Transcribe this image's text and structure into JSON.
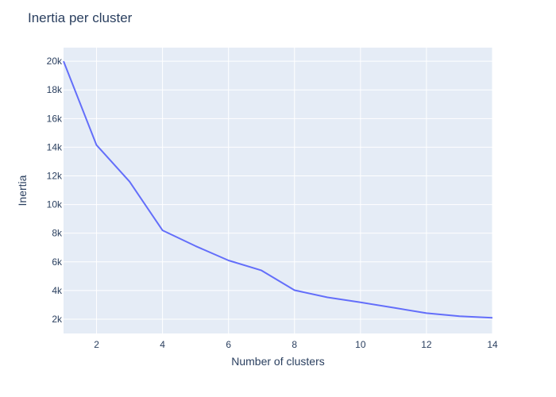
{
  "chart_data": {
    "type": "line",
    "title": "Inertia per cluster",
    "xlabel": "Number of clusters",
    "ylabel": "Inertia",
    "x": [
      1,
      2,
      3,
      4,
      5,
      6,
      7,
      8,
      9,
      10,
      11,
      12,
      13,
      14
    ],
    "series": [
      {
        "values": [
          20000,
          14150,
          11600,
          8200,
          7100,
          6100,
          5400,
          4020,
          3520,
          3170,
          2800,
          2420,
          2200,
          2100
        ]
      }
    ],
    "xlim": [
      1,
      14
    ],
    "ylim": [
      1000,
      20950
    ],
    "xticks": [
      2,
      4,
      6,
      8,
      10,
      12,
      14
    ],
    "xtick_labels": [
      "2",
      "4",
      "6",
      "8",
      "10",
      "12",
      "14"
    ],
    "yticks": [
      2000,
      4000,
      6000,
      8000,
      10000,
      12000,
      14000,
      16000,
      18000,
      20000
    ],
    "ytick_labels": [
      "2k",
      "4k",
      "6k",
      "8k",
      "10k",
      "12k",
      "14k",
      "16k",
      "18k",
      "20k"
    ],
    "grid": true,
    "colors": {
      "line": "#636efa",
      "plot_background": "#e5ecf6",
      "grid": "#ffffff",
      "text": "#2a3f5f"
    }
  }
}
